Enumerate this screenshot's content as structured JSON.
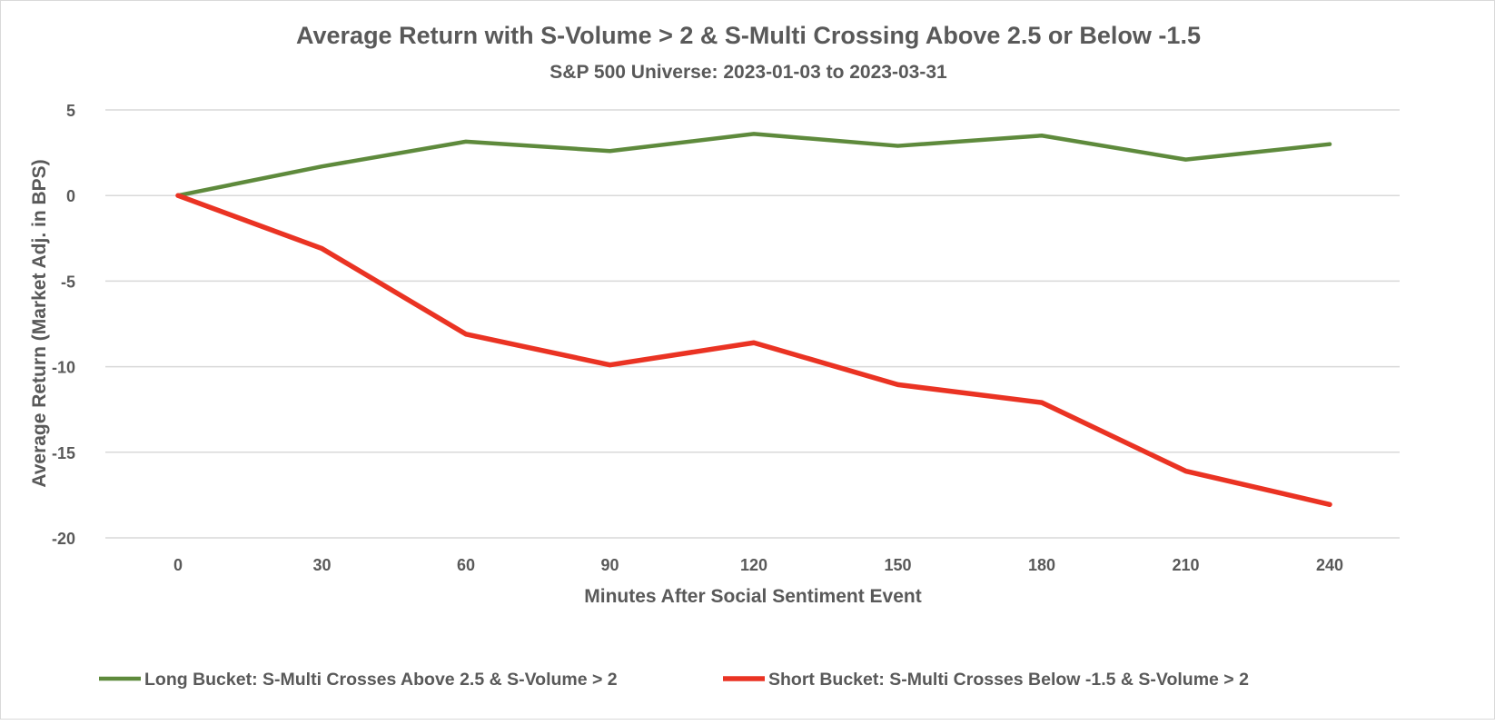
{
  "chart_data": {
    "type": "line",
    "title": "Average Return with S-Volume > 2 & S-Multi Crossing Above 2.5 or Below -1.5",
    "subtitle": "S&P 500 Universe: 2023-01-03 to 2023-03-31",
    "xlabel": "Minutes After Social Sentiment Event",
    "ylabel": "Average Return (Market Adj. in BPS)",
    "x": [
      0,
      30,
      60,
      90,
      120,
      150,
      180,
      210,
      240
    ],
    "x_tick_labels": [
      "0",
      "30",
      "60",
      "90",
      "120",
      "150",
      "180",
      "210",
      "240"
    ],
    "y_ticks": [
      5,
      0,
      -5,
      -10,
      -15,
      -20
    ],
    "y_tick_labels": [
      "5",
      "0",
      "-5",
      "-10",
      "-15",
      "-20"
    ],
    "ylim": [
      -20,
      5
    ],
    "grid": "horizontal",
    "legend_position": "bottom",
    "series": [
      {
        "name": "Long Bucket: S-Multi Crosses Above 2.5 & S-Volume > 2",
        "color": "#5e8a3c",
        "values": [
          0,
          1.7,
          3.15,
          2.6,
          3.6,
          2.9,
          3.5,
          2.1,
          3.0
        ]
      },
      {
        "name": "Short Bucket: S-Multi Crosses Below -1.5 & S-Volume > 2",
        "color": "#ea3323",
        "values": [
          0,
          -3.1,
          -8.1,
          -9.9,
          -8.6,
          -11.05,
          -12.1,
          -16.1,
          -18.05
        ]
      }
    ]
  }
}
